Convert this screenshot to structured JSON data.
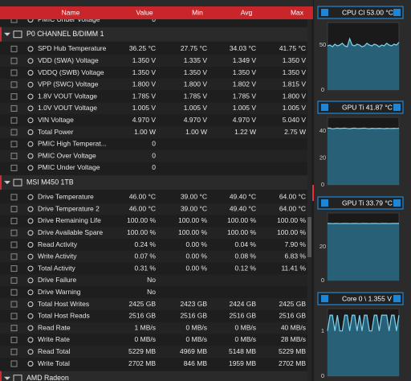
{
  "header": [
    "Name",
    "Value",
    "Min",
    "Avg",
    "Max"
  ],
  "rows": [
    {
      "name": "PMIC Under Voltage",
      "values": [
        "0"
      ]
    },
    {
      "group": "P0 CHANNEL B/DIMM 1"
    },
    {
      "name": "SPD Hub Temperature",
      "values": [
        "36.25 °C",
        "27.75 °C",
        "34.03 °C",
        "41.75 °C"
      ]
    },
    {
      "name": "VDD (SWA) Voltage",
      "values": [
        "1.350 V",
        "1.335 V",
        "1.349 V",
        "1.350 V"
      ]
    },
    {
      "name": "VDDQ (SWB) Voltage",
      "values": [
        "1.350 V",
        "1.350 V",
        "1.350 V",
        "1.350 V"
      ]
    },
    {
      "name": "VPP (SWC) Voltage",
      "values": [
        "1.800 V",
        "1.800 V",
        "1.802 V",
        "1.815 V"
      ]
    },
    {
      "name": "1.8V VOUT Voltage",
      "values": [
        "1.785 V",
        "1.785 V",
        "1.785 V",
        "1.800 V"
      ]
    },
    {
      "name": "1.0V VOUT Voltage",
      "values": [
        "1.005 V",
        "1.005 V",
        "1.005 V",
        "1.005 V"
      ]
    },
    {
      "name": "VIN Voltage",
      "values": [
        "4.970 V",
        "4.970 V",
        "4.970 V",
        "5.040 V"
      ]
    },
    {
      "name": "Total Power",
      "values": [
        "1.00 W",
        "1.00 W",
        "1.22 W",
        "2.75 W"
      ]
    },
    {
      "name": "PMIC High Temperat...",
      "values": [
        "0"
      ]
    },
    {
      "name": "PMIC Over Voltage",
      "values": [
        "0"
      ]
    },
    {
      "name": "PMIC Under Voltage",
      "values": [
        "0"
      ]
    },
    {
      "group": "MSI M450 1TB"
    },
    {
      "name": "Drive Temperature",
      "values": [
        "46.00 °C",
        "39.00 °C",
        "49.40 °C",
        "64.00 °C"
      ]
    },
    {
      "name": "Drive Temperature 2",
      "values": [
        "46.00 °C",
        "39.00 °C",
        "49.40 °C",
        "64.00 °C"
      ]
    },
    {
      "name": "Drive Remaining Life",
      "values": [
        "100.00 %",
        "100.00 %",
        "100.00 %",
        "100.00 %"
      ]
    },
    {
      "name": "Drive Available Spare",
      "values": [
        "100.00 %",
        "100.00 %",
        "100.00 %",
        "100.00 %"
      ]
    },
    {
      "name": "Read Activity",
      "values": [
        "0.24 %",
        "0.00 %",
        "0.04 %",
        "7.90 %"
      ]
    },
    {
      "name": "Write Activity",
      "values": [
        "0.07 %",
        "0.00 %",
        "0.08 %",
        "6.83 %"
      ]
    },
    {
      "name": "Total Activity",
      "values": [
        "0.31 %",
        "0.00 %",
        "0.12 %",
        "11.41 %"
      ]
    },
    {
      "name": "Drive Failure",
      "values": [
        "No"
      ]
    },
    {
      "name": "Drive Warning",
      "values": [
        "No"
      ]
    },
    {
      "name": "Total Host Writes",
      "values": [
        "2425 GB",
        "2423 GB",
        "2424 GB",
        "2425 GB"
      ]
    },
    {
      "name": "Total Host Reads",
      "values": [
        "2516 GB",
        "2516 GB",
        "2516 GB",
        "2516 GB"
      ]
    },
    {
      "name": "Read Rate",
      "values": [
        "1 MB/s",
        "0 MB/s",
        "0 MB/s",
        "40 MB/s"
      ]
    },
    {
      "name": "Write Rate",
      "values": [
        "0 MB/s",
        "0 MB/s",
        "0 MB/s",
        "28 MB/s"
      ]
    },
    {
      "name": "Read Total",
      "values": [
        "5229 MB",
        "4969 MB",
        "5148 MB",
        "5229 MB"
      ]
    },
    {
      "name": "Write Total",
      "values": [
        "2702 MB",
        "846 MB",
        "1959 MB",
        "2702 MB"
      ]
    },
    {
      "group": "AMD Radeon"
    }
  ],
  "graphs": [
    {
      "title": "CPU Cl 53.00 °C",
      "ylim": [
        0,
        75
      ],
      "yticks": [
        0,
        50
      ],
      "values": [
        49,
        50,
        48,
        51,
        49,
        50,
        52,
        49,
        48,
        57,
        50,
        49,
        51,
        50,
        48,
        49,
        52,
        50,
        49,
        51,
        50,
        48,
        50,
        49,
        52,
        50,
        49,
        51,
        50,
        53
      ]
    },
    {
      "title": "GPU Ti 41.87 °C",
      "ylim": [
        0,
        50
      ],
      "yticks": [
        0,
        20,
        40
      ],
      "values": [
        42,
        42,
        41.5,
        41.8,
        42,
        41.7,
        41.9,
        42,
        41.8,
        41.6,
        41.9,
        42,
        41.8,
        41.7,
        41.9,
        42,
        41.8,
        41.6,
        41.9,
        41.8,
        41.7,
        41.9,
        41.8,
        41.6,
        41.9,
        41.8,
        41.7,
        41.9,
        41.8,
        41.87
      ]
    },
    {
      "title": "GPU Ti 33.79 °C",
      "ylim": [
        0,
        40
      ],
      "yticks": [
        0,
        20
      ],
      "values": [
        33.8,
        33.8,
        33.7,
        33.8,
        33.8,
        33.7,
        33.8,
        33.8,
        33.8,
        33.7,
        33.8,
        33.8,
        33.8,
        33.7,
        33.8,
        33.8,
        33.8,
        33.7,
        33.8,
        33.8,
        33.8,
        33.7,
        33.8,
        33.8,
        33.8,
        33.7,
        33.8,
        33.8,
        33.8,
        33.79
      ]
    },
    {
      "title": "Core 0 \\ 1.355 V",
      "ylim": [
        0,
        1.5
      ],
      "yticks": [
        0,
        1
      ],
      "values": [
        1.005,
        1.355,
        1.355,
        1.005,
        1.355,
        1.005,
        1.005,
        1.355,
        1.355,
        1.005,
        1.355,
        1.355,
        1.005,
        1.355,
        1.005,
        1.355,
        1.355,
        1.005,
        1.005,
        1.355,
        1.355,
        1.005,
        1.355,
        1.355,
        1.355,
        1.005,
        1.355,
        1.355,
        1.005,
        1.355
      ]
    }
  ]
}
